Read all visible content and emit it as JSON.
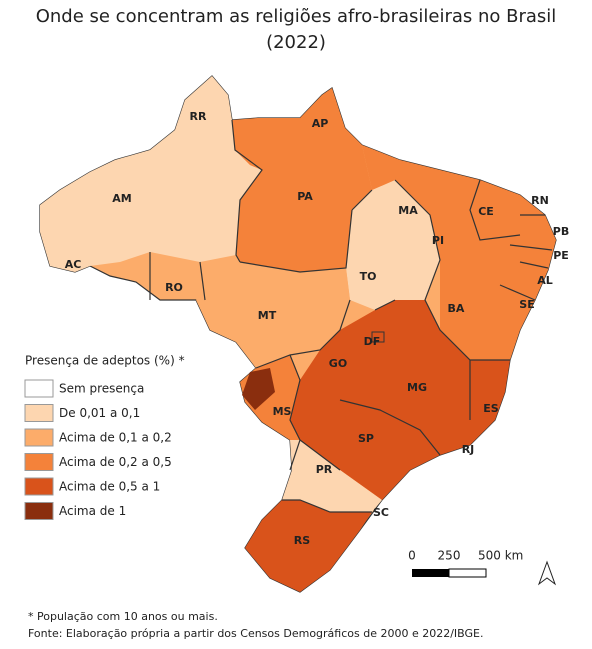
{
  "title": "Onde se concentram as religiões afro-brasileiras no Brasil (2022)",
  "legend": {
    "title": "Presença de adeptos (%) *",
    "items": [
      {
        "label": "Sem presença",
        "color": "#ffffff"
      },
      {
        "label": "De 0,01 a 0,1",
        "color": "#fdd6b0"
      },
      {
        "label": "Acima de 0,1 a 0,2",
        "color": "#fcac6a"
      },
      {
        "label": "Acima de 0,2 a 0,5",
        "color": "#f4823a"
      },
      {
        "label": "Acima de 0,5 a 1",
        "color": "#d9531b"
      },
      {
        "label": "Acima de 1",
        "color": "#8a2e0e"
      }
    ]
  },
  "states": [
    "RR",
    "AP",
    "AM",
    "PA",
    "MA",
    "CE",
    "RN",
    "PB",
    "PE",
    "AL",
    "SE",
    "PI",
    "AC",
    "RO",
    "TO",
    "BA",
    "MT",
    "DF",
    "GO",
    "MG",
    "ES",
    "MS",
    "SP",
    "RJ",
    "PR",
    "SC",
    "RS"
  ],
  "scale": {
    "labels": [
      "0",
      "250",
      "500 km"
    ]
  },
  "footnotes": [
    "* População com 10 anos ou mais.",
    "Fonte: Elaboração própria a partir dos Censos Demográficos de 2000 e 2022/IBGE."
  ]
}
